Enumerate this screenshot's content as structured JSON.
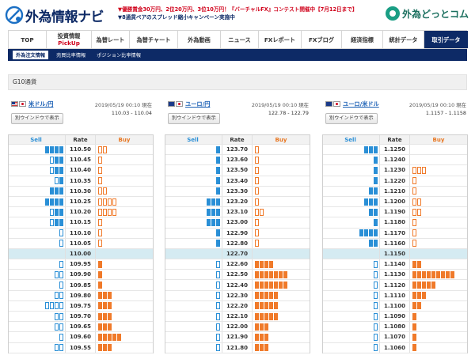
{
  "header": {
    "logo_text": "外為情報ナビ",
    "promo_line1": "▼優勝賞金30万円、2位20万円、3位10万円！『バーチャルFX』コンテスト開催中【7月12日まで】",
    "promo_line2": "▼8通貨ペアのスプレッド縮小キャンペーン実施中",
    "brand": "外為どっとコム"
  },
  "nav": {
    "items": [
      {
        "label": "TOP"
      },
      {
        "label": "投資情報",
        "sub": "PickUp"
      },
      {
        "label": "為替レート"
      },
      {
        "label": "為替チャート"
      },
      {
        "label": "外為動画"
      },
      {
        "label": "ニュース"
      },
      {
        "label": "FXレポート"
      },
      {
        "label": "FXブログ"
      },
      {
        "label": "経済指標"
      },
      {
        "label": "統計データ"
      },
      {
        "label": "取引データ",
        "active": true
      }
    ]
  },
  "subnav": {
    "items": [
      {
        "label": "外為注文情報",
        "active": true
      },
      {
        "label": "売買比率情報"
      },
      {
        "label": "ポジション比率情報"
      }
    ]
  },
  "section_title": "G10通貨",
  "colors": {
    "sell": "#2a8fd6",
    "buy": "#f07a2a",
    "navy": "#0d2a66",
    "mid_row": "#d5ebf2"
  },
  "ladder_headers": {
    "sell": "Sell",
    "rate": "Rate",
    "buy": "Buy"
  },
  "panels": [
    {
      "pair": "米ドル/円",
      "flag": "flag-us",
      "timestamp": "2019/05/19 00:10 現在",
      "range": "110.03 - 110.04",
      "window_button": "別ウインドウで表示",
      "rows": [
        {
          "rate": "110.50",
          "sell": 4,
          "sell_o": 0,
          "buy": 0,
          "buy_o": 2
        },
        {
          "rate": "110.45",
          "sell": 2,
          "sell_o": 1,
          "buy": 0,
          "buy_o": 1
        },
        {
          "rate": "110.40",
          "sell": 2,
          "sell_o": 1,
          "buy": 0,
          "buy_o": 1
        },
        {
          "rate": "110.35",
          "sell": 1,
          "sell_o": 1,
          "buy": 0,
          "buy_o": 1
        },
        {
          "rate": "110.30",
          "sell": 3,
          "sell_o": 0,
          "buy": 0,
          "buy_o": 2
        },
        {
          "rate": "110.25",
          "sell": 4,
          "sell_o": 0,
          "buy": 0,
          "buy_o": 4
        },
        {
          "rate": "110.20",
          "sell": 2,
          "sell_o": 1,
          "buy": 0,
          "buy_o": 4
        },
        {
          "rate": "110.15",
          "sell": 2,
          "sell_o": 1,
          "buy": 0,
          "buy_o": 1
        },
        {
          "rate": "110.10",
          "sell": 0,
          "sell_o": 1,
          "buy": 0,
          "buy_o": 1
        },
        {
          "rate": "110.05",
          "sell": 0,
          "sell_o": 1,
          "buy": 0,
          "buy_o": 1
        },
        {
          "rate": "110.00",
          "mid": true
        },
        {
          "rate": "109.95",
          "sell": 0,
          "sell_o": 1,
          "buy": 1,
          "buy_o": 0
        },
        {
          "rate": "109.90",
          "sell": 0,
          "sell_o": 2,
          "buy": 1,
          "buy_o": 0
        },
        {
          "rate": "109.85",
          "sell": 0,
          "sell_o": 1,
          "buy": 1,
          "buy_o": 0
        },
        {
          "rate": "109.80",
          "sell": 0,
          "sell_o": 2,
          "buy": 3,
          "buy_o": 0
        },
        {
          "rate": "109.75",
          "sell": 0,
          "sell_o": 4,
          "buy": 3,
          "buy_o": 0
        },
        {
          "rate": "109.70",
          "sell": 0,
          "sell_o": 2,
          "buy": 3,
          "buy_o": 0
        },
        {
          "rate": "109.65",
          "sell": 0,
          "sell_o": 2,
          "buy": 3,
          "buy_o": 0
        },
        {
          "rate": "109.60",
          "sell": 0,
          "sell_o": 1,
          "buy": 5,
          "buy_o": 0
        },
        {
          "rate": "109.55",
          "sell": 0,
          "sell_o": 2,
          "buy": 3,
          "buy_o": 0
        }
      ]
    },
    {
      "pair": "ユーロ/円",
      "flag": "flag-eu",
      "timestamp": "2019/05/19 00:10 現在",
      "range": "122.78 - 122.79",
      "window_button": "別ウインドウで表示",
      "rows": [
        {
          "rate": "123.70",
          "sell": 1,
          "sell_o": 0,
          "buy": 0,
          "buy_o": 1
        },
        {
          "rate": "123.60",
          "sell": 1,
          "sell_o": 0,
          "buy": 0,
          "buy_o": 1
        },
        {
          "rate": "123.50",
          "sell": 1,
          "sell_o": 0,
          "buy": 0,
          "buy_o": 1
        },
        {
          "rate": "123.40",
          "sell": 1,
          "sell_o": 0,
          "buy": 0,
          "buy_o": 1
        },
        {
          "rate": "123.30",
          "sell": 1,
          "sell_o": 0,
          "buy": 0,
          "buy_o": 1
        },
        {
          "rate": "123.20",
          "sell": 3,
          "sell_o": 0,
          "buy": 0,
          "buy_o": 1
        },
        {
          "rate": "123.10",
          "sell": 3,
          "sell_o": 0,
          "buy": 0,
          "buy_o": 2
        },
        {
          "rate": "123.00",
          "sell": 3,
          "sell_o": 0,
          "buy": 0,
          "buy_o": 1
        },
        {
          "rate": "122.90",
          "sell": 1,
          "sell_o": 0,
          "buy": 0,
          "buy_o": 1
        },
        {
          "rate": "122.80",
          "sell": 1,
          "sell_o": 0,
          "buy": 0,
          "buy_o": 1
        },
        {
          "rate": "122.70",
          "mid": true
        },
        {
          "rate": "122.60",
          "sell": 0,
          "sell_o": 1,
          "buy": 4,
          "buy_o": 0
        },
        {
          "rate": "122.50",
          "sell": 0,
          "sell_o": 1,
          "buy": 7,
          "buy_o": 0
        },
        {
          "rate": "122.40",
          "sell": 0,
          "sell_o": 1,
          "buy": 7,
          "buy_o": 0
        },
        {
          "rate": "122.30",
          "sell": 0,
          "sell_o": 1,
          "buy": 5,
          "buy_o": 0
        },
        {
          "rate": "122.20",
          "sell": 0,
          "sell_o": 1,
          "buy": 5,
          "buy_o": 0
        },
        {
          "rate": "122.10",
          "sell": 0,
          "sell_o": 1,
          "buy": 5,
          "buy_o": 0
        },
        {
          "rate": "122.00",
          "sell": 0,
          "sell_o": 1,
          "buy": 3,
          "buy_o": 0
        },
        {
          "rate": "121.90",
          "sell": 0,
          "sell_o": 1,
          "buy": 3,
          "buy_o": 0
        },
        {
          "rate": "121.80",
          "sell": 0,
          "sell_o": 1,
          "buy": 3,
          "buy_o": 0
        }
      ]
    },
    {
      "pair": "ユーロ/米ドル",
      "flag": "flag-eu",
      "timestamp": "2019/05/19 00:10 現在",
      "range": "1.1157 - 1.1158",
      "window_button": "別ウインドウで表示",
      "rows": [
        {
          "rate": "1.1250",
          "sell": 3,
          "sell_o": 0,
          "buy": 0,
          "buy_o": 0
        },
        {
          "rate": "1.1240",
          "sell": 1,
          "sell_o": 0,
          "buy": 0,
          "buy_o": 0
        },
        {
          "rate": "1.1230",
          "sell": 1,
          "sell_o": 0,
          "buy": 0,
          "buy_o": 3
        },
        {
          "rate": "1.1220",
          "sell": 1,
          "sell_o": 0,
          "buy": 0,
          "buy_o": 1
        },
        {
          "rate": "1.1210",
          "sell": 2,
          "sell_o": 0,
          "buy": 0,
          "buy_o": 1
        },
        {
          "rate": "1.1200",
          "sell": 3,
          "sell_o": 0,
          "buy": 0,
          "buy_o": 2
        },
        {
          "rate": "1.1190",
          "sell": 2,
          "sell_o": 0,
          "buy": 0,
          "buy_o": 2
        },
        {
          "rate": "1.1180",
          "sell": 1,
          "sell_o": 0,
          "buy": 0,
          "buy_o": 1
        },
        {
          "rate": "1.1170",
          "sell": 4,
          "sell_o": 0,
          "buy": 0,
          "buy_o": 1
        },
        {
          "rate": "1.1160",
          "sell": 2,
          "sell_o": 0,
          "buy": 0,
          "buy_o": 1
        },
        {
          "rate": "1.1150",
          "mid": true
        },
        {
          "rate": "1.1140",
          "sell": 0,
          "sell_o": 1,
          "buy": 2,
          "buy_o": 0
        },
        {
          "rate": "1.1130",
          "sell": 0,
          "sell_o": 1,
          "buy": 9,
          "buy_o": 0
        },
        {
          "rate": "1.1120",
          "sell": 0,
          "sell_o": 1,
          "buy": 5,
          "buy_o": 0
        },
        {
          "rate": "1.1110",
          "sell": 0,
          "sell_o": 1,
          "buy": 3,
          "buy_o": 0
        },
        {
          "rate": "1.1100",
          "sell": 0,
          "sell_o": 1,
          "buy": 2,
          "buy_o": 0
        },
        {
          "rate": "1.1090",
          "sell": 0,
          "sell_o": 1,
          "buy": 1,
          "buy_o": 0
        },
        {
          "rate": "1.1080",
          "sell": 0,
          "sell_o": 1,
          "buy": 1,
          "buy_o": 0
        },
        {
          "rate": "1.1070",
          "sell": 0,
          "sell_o": 1,
          "buy": 1,
          "buy_o": 0
        },
        {
          "rate": "1.1060",
          "sell": 0,
          "sell_o": 1,
          "buy": 1,
          "buy_o": 0
        }
      ]
    }
  ]
}
